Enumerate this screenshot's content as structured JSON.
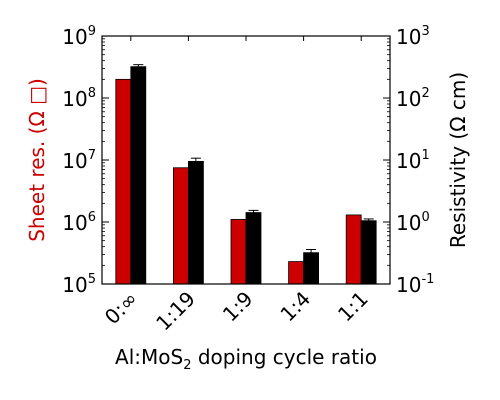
{
  "chart_data": {
    "type": "bar",
    "categories": [
      "0:∞",
      "1:19",
      "1:9",
      "1:4",
      "1:1"
    ],
    "series": [
      {
        "name": "Sheet res.",
        "axis": "left",
        "color": "#cc0000",
        "values": [
          200000000,
          7500000,
          1100000,
          230000,
          1300000
        ],
        "errors": [
          0,
          0,
          0,
          0,
          0
        ]
      },
      {
        "name": "Resistivity",
        "axis": "right",
        "color": "#000000",
        "values": [
          320,
          9.5,
          1.42,
          0.32,
          1.05
        ],
        "errors": [
          25,
          1.2,
          0.12,
          0.04,
          0.07
        ]
      }
    ],
    "left_axis": {
      "label": "Sheet res. (Ω □)",
      "scale": "log",
      "lim": [
        100000,
        1000000000
      ],
      "ticks": [
        {
          "base": "10",
          "exp": "5"
        },
        {
          "base": "10",
          "exp": "6"
        },
        {
          "base": "10",
          "exp": "7"
        },
        {
          "base": "10",
          "exp": "8"
        },
        {
          "base": "10",
          "exp": "9"
        }
      ]
    },
    "right_axis": {
      "label": "Resistivity (Ω cm)",
      "scale": "log",
      "lim": [
        0.1,
        1000
      ],
      "ticks": [
        {
          "base": "10",
          "exp": "-1"
        },
        {
          "base": "10",
          "exp": "0"
        },
        {
          "base": "10",
          "exp": "1"
        },
        {
          "base": "10",
          "exp": "2"
        },
        {
          "base": "10",
          "exp": "3"
        }
      ]
    },
    "x_axis": {
      "label_main": "Al:MoS",
      "label_sub": "2",
      "label_tail": " doping cycle ratio"
    },
    "colors": {
      "left_label": "#cc0000",
      "right_label": "#000000"
    }
  }
}
